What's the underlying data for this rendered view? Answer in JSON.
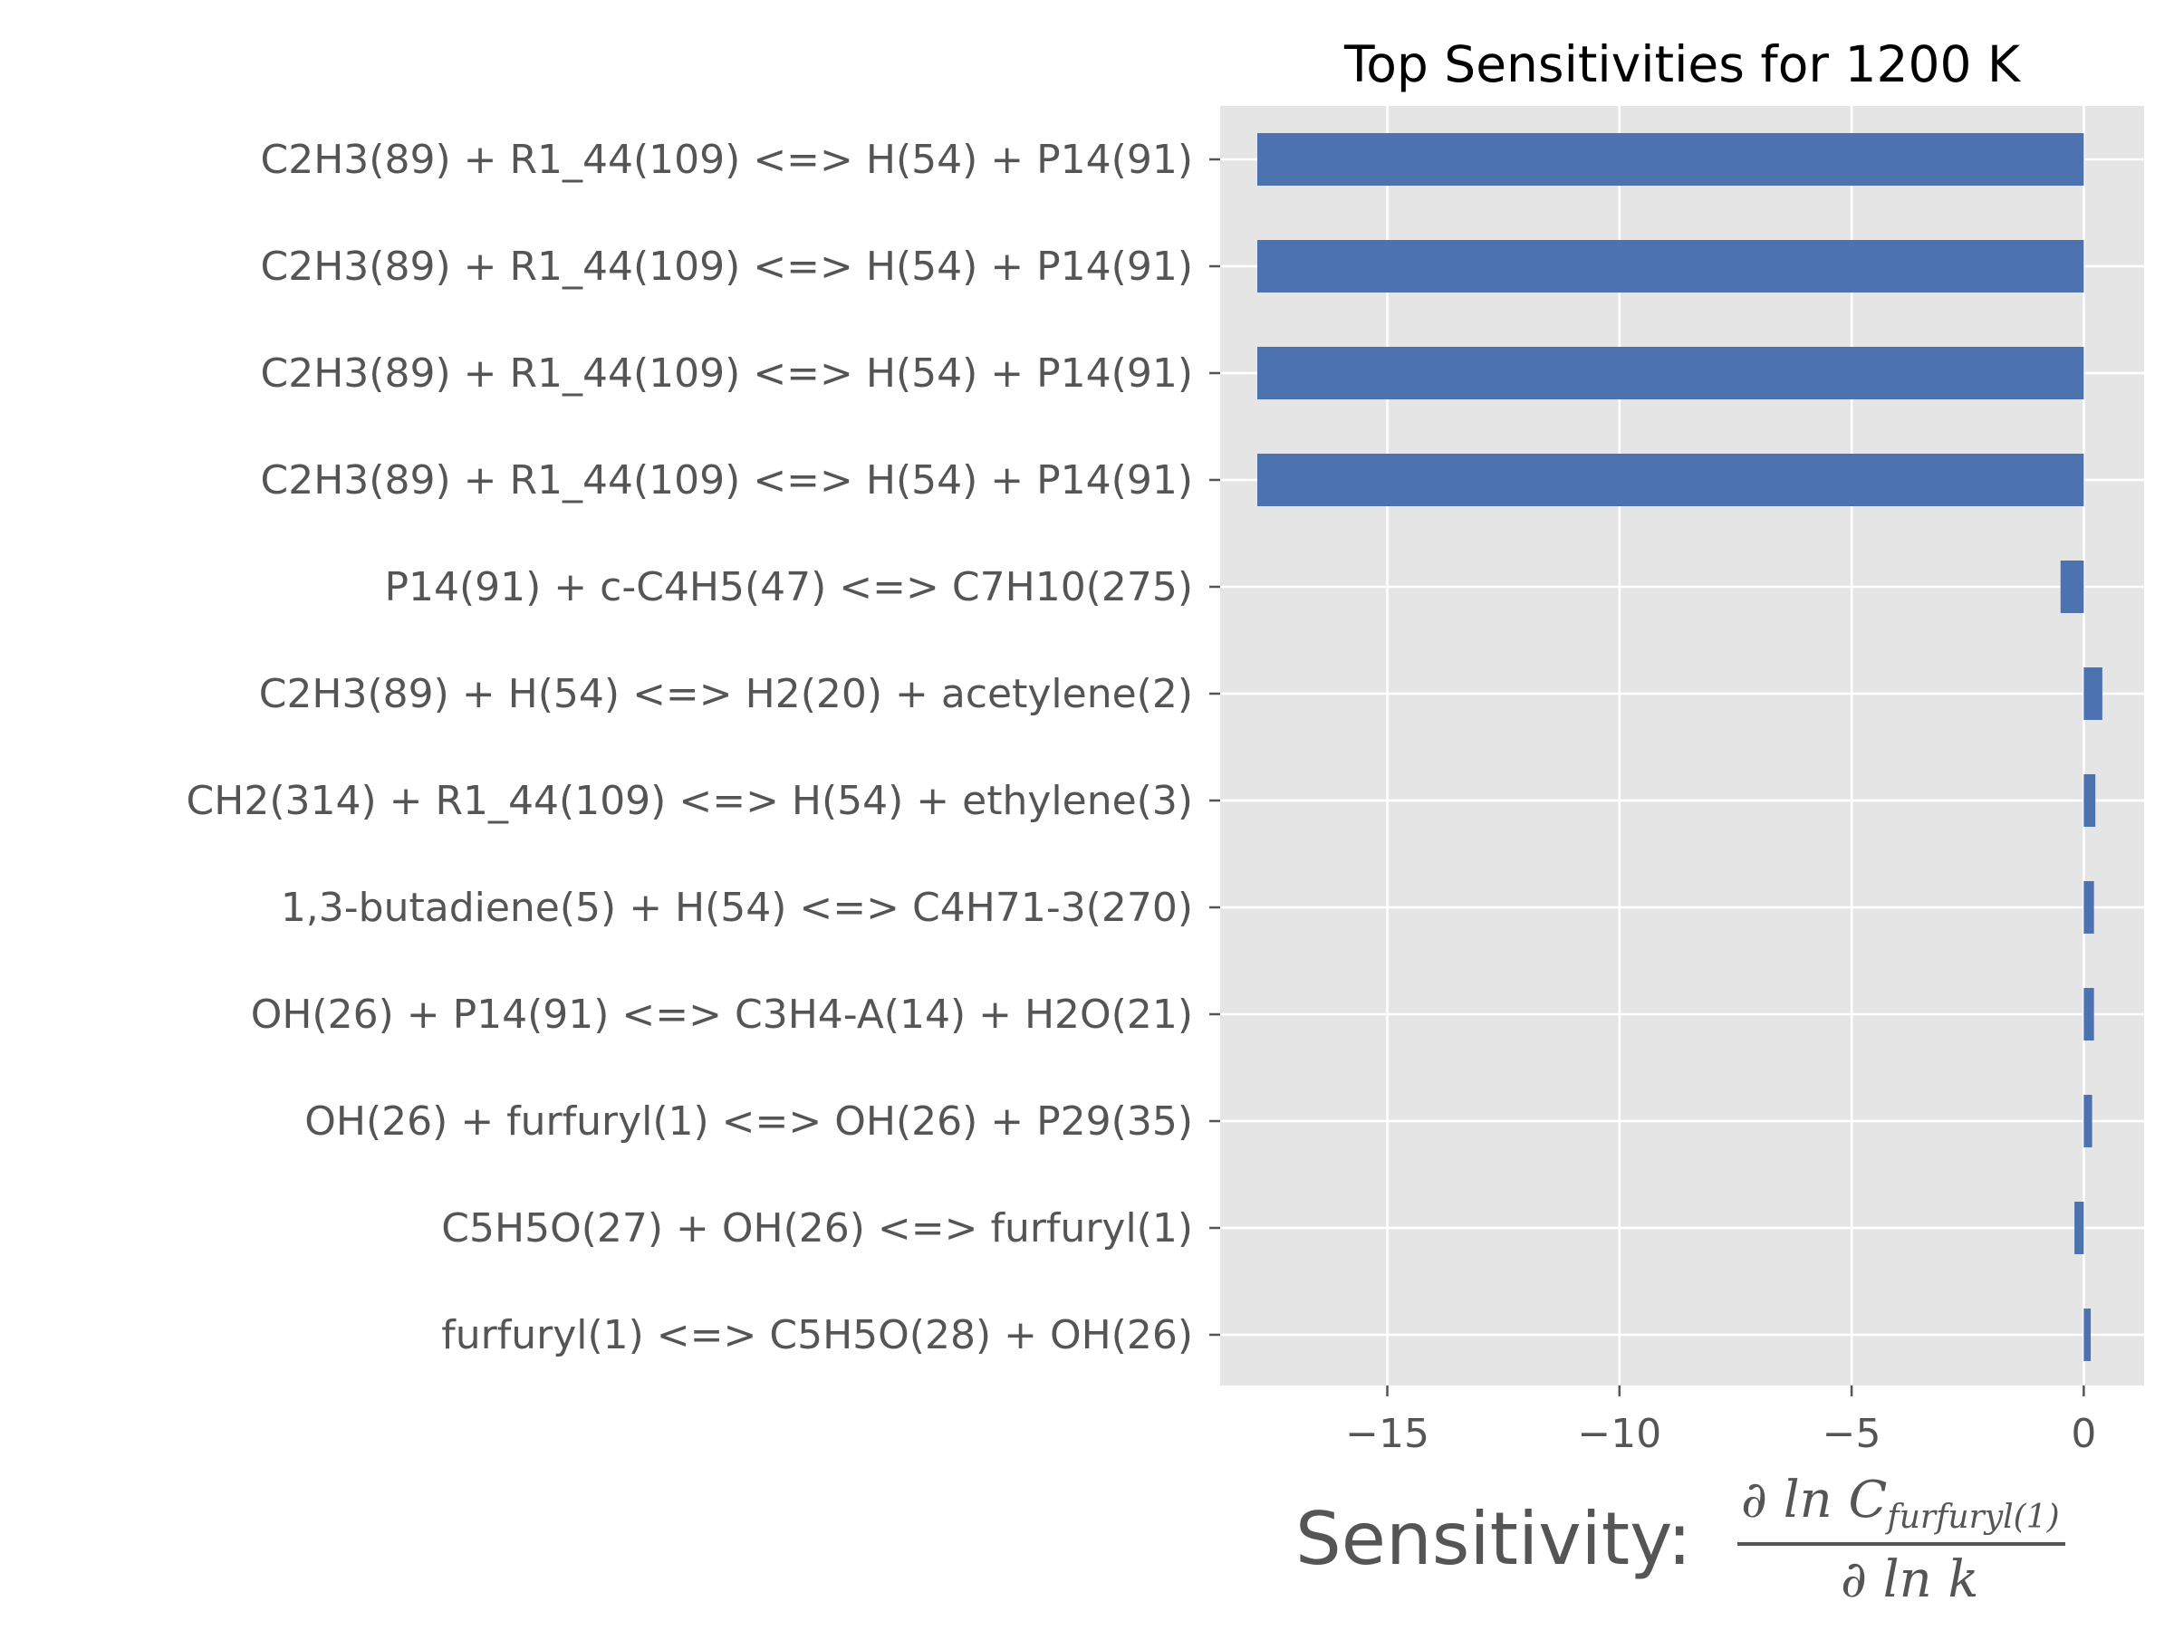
{
  "chart_data": {
    "type": "bar",
    "orientation": "horizontal",
    "title": "Top Sensitivities for 1200 K",
    "xlabel": {
      "prefix": "Sensitivity:",
      "numerator_op": "∂ ln C",
      "numerator_sub": "furfuryl(1)",
      "denominator": "∂ ln k"
    },
    "ylabel": "",
    "xlim": [
      -18.6,
      1.3
    ],
    "xticks": [
      -15,
      -10,
      -5,
      0
    ],
    "xtick_labels": [
      "−15",
      "−10",
      "−5",
      "0"
    ],
    "grid": true,
    "bar_color": "#4c72b0",
    "background_color": "#e5e5e5",
    "categories": [
      "C2H3(89) + R1_44(109) <=> H(54) + P14(91)",
      "C2H3(89) + R1_44(109) <=> H(54) + P14(91)",
      "C2H3(89) + R1_44(109) <=> H(54) + P14(91)",
      "C2H3(89) + R1_44(109) <=> H(54) + P14(91)",
      "P14(91) + c-C4H5(47) <=> C7H10(275)",
      "C2H3(89) + H(54) <=> H2(20) + acetylene(2)",
      "CH2(314) + R1_44(109) <=> H(54) + ethylene(3)",
      "1,3-butadiene(5) + H(54) <=> C4H71-3(270)",
      "OH(26) + P14(91) <=> C3H4-A(14) + H2O(21)",
      "OH(26) + furfuryl(1) <=> OH(26) + P29(35)",
      "C5H5O(27) + OH(26) <=> furfuryl(1)",
      "furfuryl(1) <=> C5H5O(28) + OH(26)"
    ],
    "values": [
      -17.8,
      -17.8,
      -17.8,
      -17.8,
      -0.5,
      0.4,
      0.25,
      0.22,
      0.22,
      0.18,
      -0.2,
      0.15
    ]
  }
}
